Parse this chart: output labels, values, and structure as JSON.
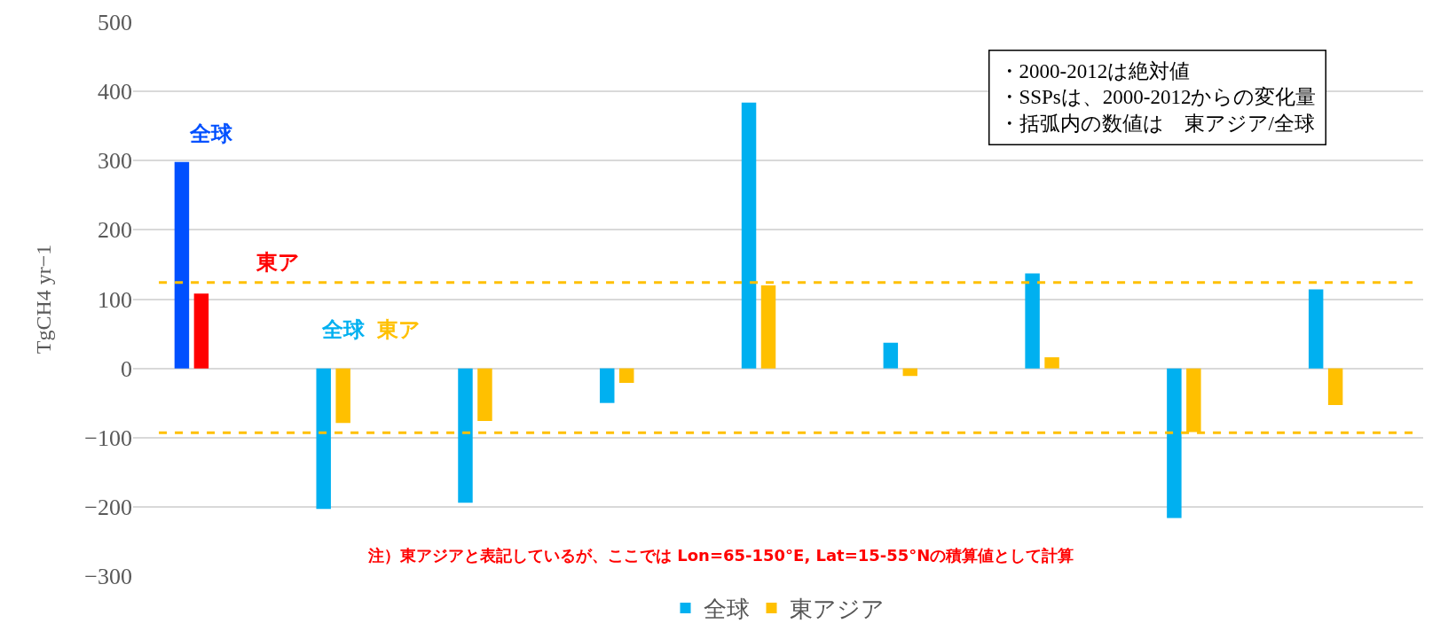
{
  "chart_data": {
    "type": "bar",
    "ylabel": "TgCH4 yr−1",
    "categories": [
      null,
      null,
      null,
      null,
      null,
      null,
      null,
      null,
      null
    ],
    "series": [
      {
        "name": "全球",
        "color": "#00b0f0",
        "colors": [
          "#0050ff",
          "#00b0f0",
          "#00b0f0",
          "#00b0f0",
          "#00b0f0",
          "#00b0f0",
          "#00b0f0",
          "#00b0f0",
          "#00b0f0"
        ],
        "values": [
          298,
          -203,
          -194,
          -50,
          384,
          37,
          137,
          -216,
          114
        ]
      },
      {
        "name": "東アジア",
        "color": "#ffc000",
        "colors": [
          "#ff0000",
          "#ffc000",
          "#ffc000",
          "#ffc000",
          "#ffc000",
          "#ffc000",
          "#ffc000",
          "#ffc000",
          "#ffc000"
        ],
        "values": [
          108,
          -79,
          -76,
          -21,
          120,
          -11,
          16,
          -92,
          -53
        ]
      }
    ],
    "ylim": [
      -300,
      500
    ],
    "yticks": [
      {
        "value": -300,
        "label": "−300"
      },
      {
        "value": -200,
        "label": "−200"
      },
      {
        "value": -100,
        "label": "−100"
      },
      0,
      100,
      200,
      300,
      400,
      500
    ],
    "grid": "y",
    "legend": "bottom",
    "ref_lines": [
      {
        "axis": "y",
        "value": 124,
        "color": "#ffc000",
        "line_style": "dashed"
      },
      {
        "axis": "y",
        "value": -93,
        "color": "#ffc000",
        "line_style": "dashed"
      }
    ],
    "annotations": [
      "全球",
      "東ア",
      "全球",
      "東ア",
      "・2000-2012は絶対値",
      "・SSPsは、2000-2012からの変化量",
      "・括弧内の数値は　東アジア/全球",
      "注）東アジアと表記しているが、ここでは Lon=65-150°E, Lat=15-55°Nの積算値として計算"
    ]
  }
}
